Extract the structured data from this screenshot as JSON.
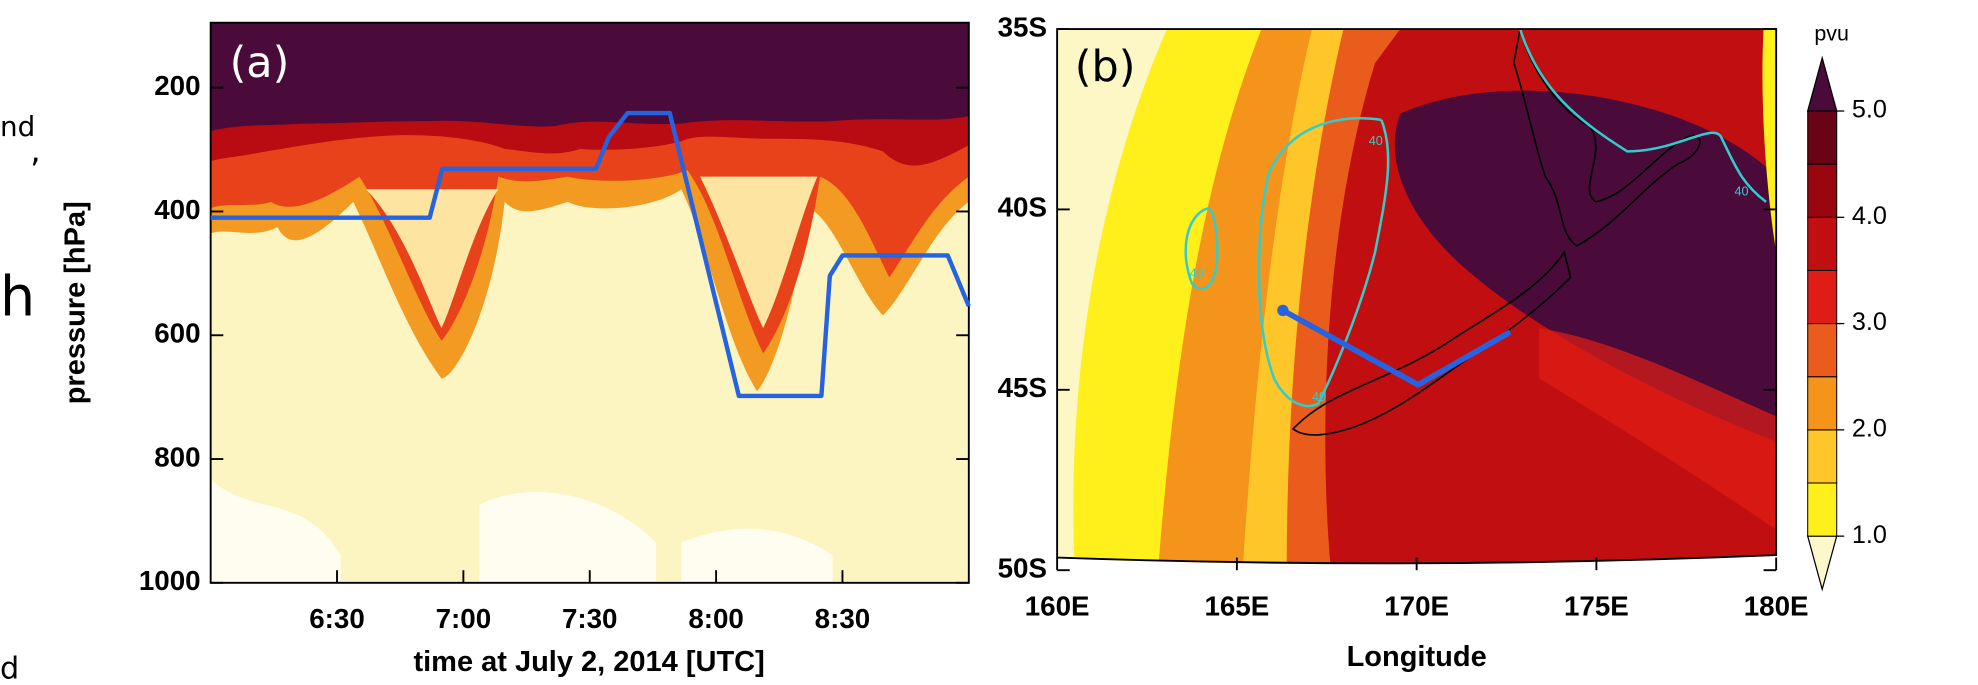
{
  "margin_fragments": [
    "nd",
    ",",
    "h",
    "d"
  ],
  "chart_data": [
    {
      "type": "line",
      "panel_label": "(a)",
      "x_label": "time at July 2, 2014 [UTC]",
      "y_label": "pressure [hPa]",
      "xlim": [
        360,
        540
      ],
      "xticks": [
        {
          "value": 390,
          "label": "6:30"
        },
        {
          "value": 420,
          "label": "7:00"
        },
        {
          "value": 450,
          "label": "7:30"
        },
        {
          "value": 480,
          "label": "8:00"
        },
        {
          "value": 510,
          "label": "8:30"
        }
      ],
      "ylim": [
        1000,
        95
      ],
      "yticks": [
        200,
        400,
        600,
        800,
        1000
      ],
      "x": [
        360,
        412,
        415,
        451.5,
        454.5,
        459,
        469,
        485.4,
        505,
        507,
        510,
        535,
        540
      ],
      "series": [
        {
          "color": "#2563e0",
          "values": [
            410,
            410,
            331,
            331,
            280,
            241,
            241,
            698,
            698,
            504,
            471,
            471,
            553
          ]
        }
      ]
    },
    {
      "type": "map",
      "panel_label": "(b)",
      "x_label": "Longitude",
      "xlim": [
        160,
        180
      ],
      "xticks": [
        {
          "value": 160,
          "label": "160E"
        },
        {
          "value": 165,
          "label": "165E"
        },
        {
          "value": 170,
          "label": "170E"
        },
        {
          "value": 175,
          "label": "175E"
        },
        {
          "value": 180,
          "label": "180E"
        }
      ],
      "ylim": [
        -50,
        -35
      ],
      "yticks": [
        {
          "value": -50,
          "label": "50S"
        },
        {
          "value": -45,
          "label": "45S"
        },
        {
          "value": -40,
          "label": "40S"
        },
        {
          "value": -35,
          "label": "35S"
        }
      ],
      "track": {
        "color": "#2563e0",
        "x": [
          166.28,
          170.04,
          172.6
        ],
        "y": [
          -42.8,
          -44.86,
          -43.4
        ]
      },
      "contour_label": "40",
      "colorbar": {
        "title": "pvu",
        "levels": [
          1.0,
          1.5,
          2.0,
          2.5,
          3.0,
          3.5,
          4.0,
          4.5,
          5.0
        ],
        "colors": [
          "#fdf8cc",
          "#fff01c",
          "#ffc62a",
          "#f4941a",
          "#ea5c1c",
          "#e01c16",
          "#c10e10",
          "#9a0610",
          "#6a0316",
          "#4a0a3a"
        ],
        "ticks": [
          {
            "value": 1,
            "label": "1.0"
          },
          {
            "value": 2,
            "label": "2.0"
          },
          {
            "value": 3,
            "label": "3.0"
          },
          {
            "value": 4,
            "label": "4.0"
          },
          {
            "value": 5,
            "label": "5.0"
          }
        ]
      }
    }
  ]
}
